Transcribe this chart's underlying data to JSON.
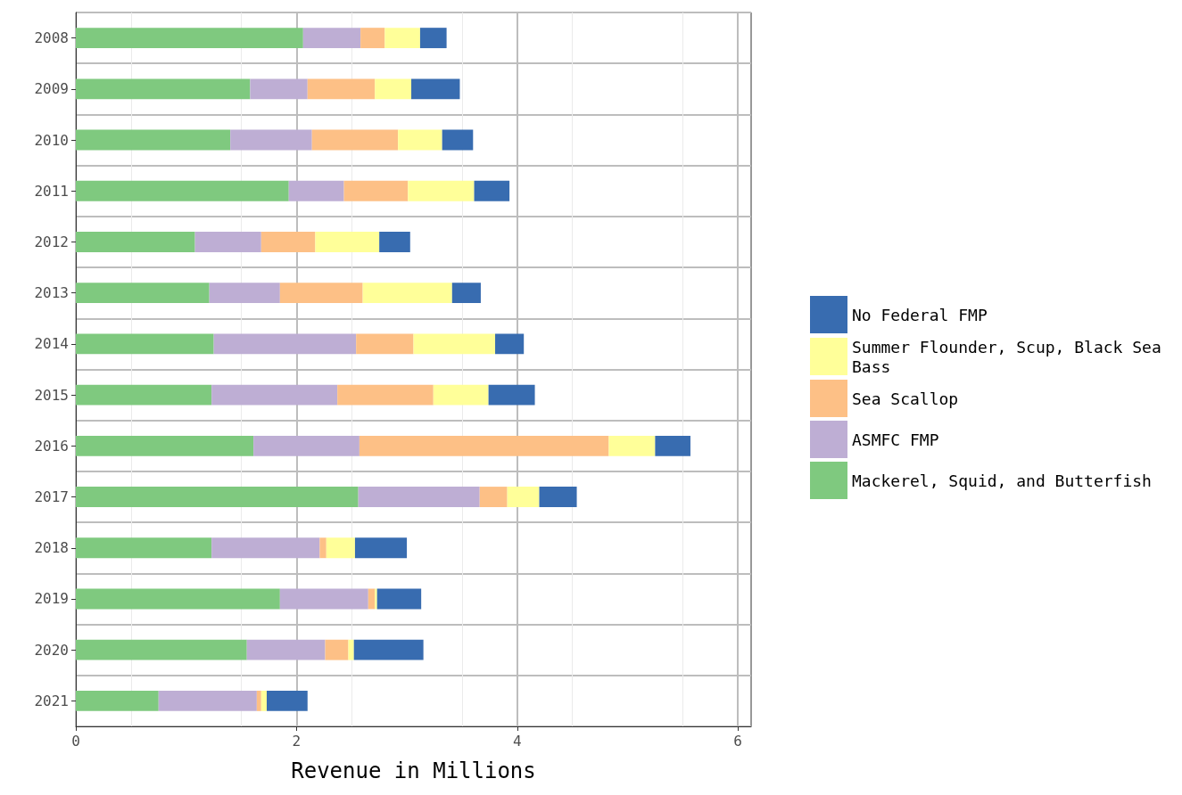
{
  "chart_data": {
    "type": "bar",
    "orientation": "horizontal",
    "stacked": true,
    "xlabel": "Revenue in Millions",
    "categories": [
      "2008",
      "2009",
      "2010",
      "2011",
      "2012",
      "2013",
      "2014",
      "2015",
      "2016",
      "2017",
      "2018",
      "2019",
      "2020",
      "2021"
    ],
    "series": [
      {
        "name": "Mackerel, Squid, and Butterfish",
        "color": "#7fc97f",
        "values": [
          2.06,
          1.58,
          1.4,
          1.93,
          1.08,
          1.21,
          1.25,
          1.23,
          1.61,
          2.56,
          1.23,
          1.85,
          1.55,
          0.75
        ]
      },
      {
        "name": "ASMFC FMP",
        "color": "#beaed4",
        "values": [
          0.52,
          0.52,
          0.74,
          0.5,
          0.6,
          0.64,
          1.29,
          1.14,
          0.96,
          1.1,
          0.98,
          0.8,
          0.71,
          0.89
        ]
      },
      {
        "name": "Sea Scallop",
        "color": "#fdc086",
        "values": [
          0.22,
          0.61,
          0.78,
          0.58,
          0.49,
          0.75,
          0.52,
          0.87,
          2.26,
          0.25,
          0.06,
          0.06,
          0.21,
          0.04
        ]
      },
      {
        "name": "Summer Flounder, Scup, Black Sea Bass",
        "color": "#ffff99",
        "values": [
          0.32,
          0.33,
          0.4,
          0.6,
          0.58,
          0.81,
          0.74,
          0.5,
          0.42,
          0.29,
          0.26,
          0.02,
          0.05,
          0.05
        ]
      },
      {
        "name": "No Federal FMP",
        "color": "#386cb0",
        "values": [
          0.24,
          0.44,
          0.28,
          0.32,
          0.28,
          0.26,
          0.26,
          0.42,
          0.32,
          0.34,
          0.47,
          0.4,
          0.63,
          0.37
        ]
      }
    ],
    "xlim": [
      0,
      6.12
    ],
    "xticks": [
      0,
      2,
      4,
      6
    ],
    "grid": true,
    "legend": "right"
  }
}
